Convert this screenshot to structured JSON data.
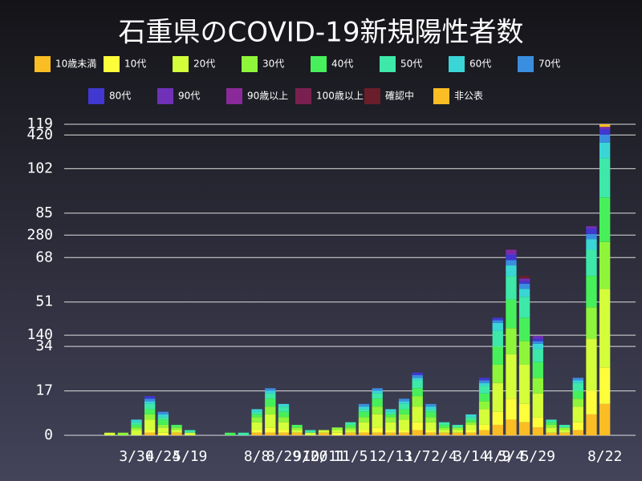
{
  "chart_data": {
    "type": "bar",
    "stacked": true,
    "grid": true,
    "title": "石重県のCOVID-19新規陽性者数",
    "categories": [
      null,
      null,
      null,
      null,
      "3/30",
      null,
      "4/24",
      null,
      "5/19",
      null,
      null,
      null,
      null,
      "8/8",
      null,
      "8/29",
      null,
      "9/20",
      "10/11",
      null,
      "11/5",
      null,
      null,
      "12/13",
      null,
      "1/7",
      null,
      "2/4",
      null,
      "3/14",
      null,
      "4/9",
      "5/4",
      null,
      "5/29",
      null,
      null,
      null,
      null,
      "8/22"
    ],
    "ylim": [
      0,
      119
    ],
    "yticks": [
      0,
      17,
      34,
      51,
      68,
      85,
      102,
      119
    ],
    "y2lim": [
      0,
      435
    ],
    "y2ticks": [
      140,
      280,
      420
    ],
    "series": [
      {
        "name": "10歳未満",
        "color": "#fbbd24",
        "values": [
          0,
          0,
          0,
          0,
          0,
          1,
          0,
          1,
          0,
          0,
          0,
          0,
          0,
          1,
          1,
          1,
          1,
          0,
          1,
          0,
          1,
          1,
          1,
          1,
          1,
          2,
          1,
          1,
          1,
          1,
          2,
          4,
          6,
          5,
          3,
          1,
          1,
          2,
          8,
          12
        ]
      },
      {
        "name": "10代",
        "color": "#fdfd3a",
        "values": [
          0,
          0,
          0,
          0,
          0,
          1,
          1,
          0,
          0,
          0,
          0,
          0,
          0,
          1,
          2,
          1,
          0,
          0,
          0,
          1,
          0,
          1,
          2,
          1,
          1,
          3,
          1,
          0,
          0,
          1,
          2,
          5,
          8,
          7,
          4,
          0,
          0,
          3,
          9,
          14
        ]
      },
      {
        "name": "20代",
        "color": "#d4fd3a",
        "values": [
          0,
          0,
          1,
          0,
          2,
          4,
          2,
          1,
          1,
          0,
          0,
          0,
          0,
          3,
          5,
          3,
          1,
          1,
          1,
          1,
          1,
          3,
          5,
          3,
          4,
          6,
          3,
          1,
          1,
          2,
          6,
          11,
          17,
          15,
          9,
          2,
          1,
          6,
          20,
          30
        ]
      },
      {
        "name": "30代",
        "color": "#8ff53a",
        "values": [
          0,
          0,
          0,
          1,
          1,
          2,
          1,
          1,
          0,
          0,
          0,
          0,
          0,
          2,
          3,
          2,
          1,
          0,
          0,
          1,
          1,
          2,
          3,
          2,
          2,
          4,
          2,
          1,
          1,
          1,
          3,
          7,
          10,
          9,
          6,
          1,
          1,
          3,
          12,
          18
        ]
      },
      {
        "name": "40代",
        "color": "#47f05a",
        "values": [
          0,
          0,
          0,
          0,
          1,
          2,
          2,
          1,
          0,
          0,
          0,
          1,
          0,
          1,
          3,
          2,
          1,
          0,
          0,
          0,
          1,
          2,
          3,
          1,
          2,
          3,
          2,
          1,
          0,
          1,
          3,
          7,
          11,
          9,
          6,
          1,
          0,
          3,
          12,
          17
        ]
      },
      {
        "name": "50代",
        "color": "#3de8a8",
        "values": [
          0,
          0,
          0,
          0,
          1,
          2,
          1,
          0,
          1,
          0,
          0,
          0,
          1,
          1,
          2,
          2,
          0,
          1,
          0,
          0,
          1,
          1,
          2,
          1,
          2,
          3,
          1,
          1,
          1,
          1,
          3,
          6,
          9,
          8,
          5,
          1,
          1,
          3,
          10,
          15
        ]
      },
      {
        "name": "60代",
        "color": "#3ad6d6",
        "values": [
          0,
          0,
          0,
          0,
          1,
          1,
          1,
          0,
          0,
          0,
          0,
          0,
          0,
          1,
          1,
          1,
          0,
          0,
          0,
          0,
          0,
          1,
          1,
          1,
          1,
          1,
          1,
          0,
          0,
          1,
          1,
          3,
          4,
          3,
          2,
          0,
          0,
          1,
          4,
          6
        ]
      },
      {
        "name": "70代",
        "color": "#3a8ee0",
        "values": [
          0,
          0,
          0,
          0,
          0,
          1,
          1,
          0,
          0,
          0,
          0,
          0,
          0,
          0,
          1,
          0,
          0,
          0,
          0,
          0,
          0,
          1,
          1,
          0,
          1,
          1,
          1,
          0,
          0,
          0,
          1,
          1,
          2,
          2,
          1,
          0,
          0,
          1,
          2,
          3
        ]
      },
      {
        "name": "80代",
        "color": "#4038d0",
        "values": [
          0,
          0,
          0,
          0,
          0,
          1,
          0,
          0,
          0,
          0,
          0,
          0,
          0,
          0,
          0,
          0,
          0,
          0,
          0,
          0,
          0,
          0,
          0,
          0,
          0,
          1,
          0,
          0,
          0,
          0,
          1,
          1,
          2,
          1,
          1,
          0,
          0,
          0,
          2,
          2
        ]
      },
      {
        "name": "90代",
        "color": "#7030b8",
        "values": [
          0,
          0,
          0,
          0,
          0,
          0,
          0,
          0,
          0,
          0,
          0,
          0,
          0,
          0,
          0,
          0,
          0,
          0,
          0,
          0,
          0,
          0,
          0,
          0,
          0,
          0,
          0,
          0,
          0,
          0,
          0,
          0,
          1,
          1,
          1,
          0,
          0,
          0,
          1,
          1
        ]
      },
      {
        "name": "90歳以上",
        "color": "#8a2a9a",
        "values": [
          0,
          0,
          0,
          0,
          0,
          0,
          0,
          0,
          0,
          0,
          0,
          0,
          0,
          0,
          0,
          0,
          0,
          0,
          0,
          0,
          0,
          0,
          0,
          0,
          0,
          0,
          0,
          0,
          0,
          0,
          0,
          0,
          1,
          0,
          0,
          0,
          0,
          0,
          0,
          0
        ]
      },
      {
        "name": "100歳以上",
        "color": "#7a2050",
        "values": [
          0,
          0,
          0,
          0,
          0,
          0,
          0,
          0,
          0,
          0,
          0,
          0,
          0,
          0,
          0,
          0,
          0,
          0,
          0,
          0,
          0,
          0,
          0,
          0,
          0,
          0,
          0,
          0,
          0,
          0,
          0,
          0,
          0,
          0,
          0,
          0,
          0,
          0,
          0,
          0
        ]
      },
      {
        "name": "確認中",
        "color": "#6a1e2a",
        "values": [
          0,
          0,
          0,
          0,
          0,
          0,
          0,
          0,
          0,
          0,
          0,
          0,
          0,
          0,
          0,
          0,
          0,
          0,
          0,
          0,
          0,
          0,
          0,
          0,
          0,
          0,
          0,
          0,
          0,
          0,
          0,
          0,
          0,
          1,
          0,
          0,
          0,
          0,
          0,
          0
        ]
      },
      {
        "name": "非公表",
        "color": "#fbbd24",
        "values": [
          0,
          0,
          0,
          0,
          0,
          0,
          0,
          0,
          0,
          0,
          0,
          0,
          0,
          0,
          0,
          0,
          0,
          0,
          0,
          0,
          0,
          0,
          0,
          0,
          0,
          0,
          0,
          0,
          0,
          0,
          0,
          0,
          0,
          0,
          0,
          0,
          0,
          0,
          0,
          1
        ]
      }
    ]
  }
}
